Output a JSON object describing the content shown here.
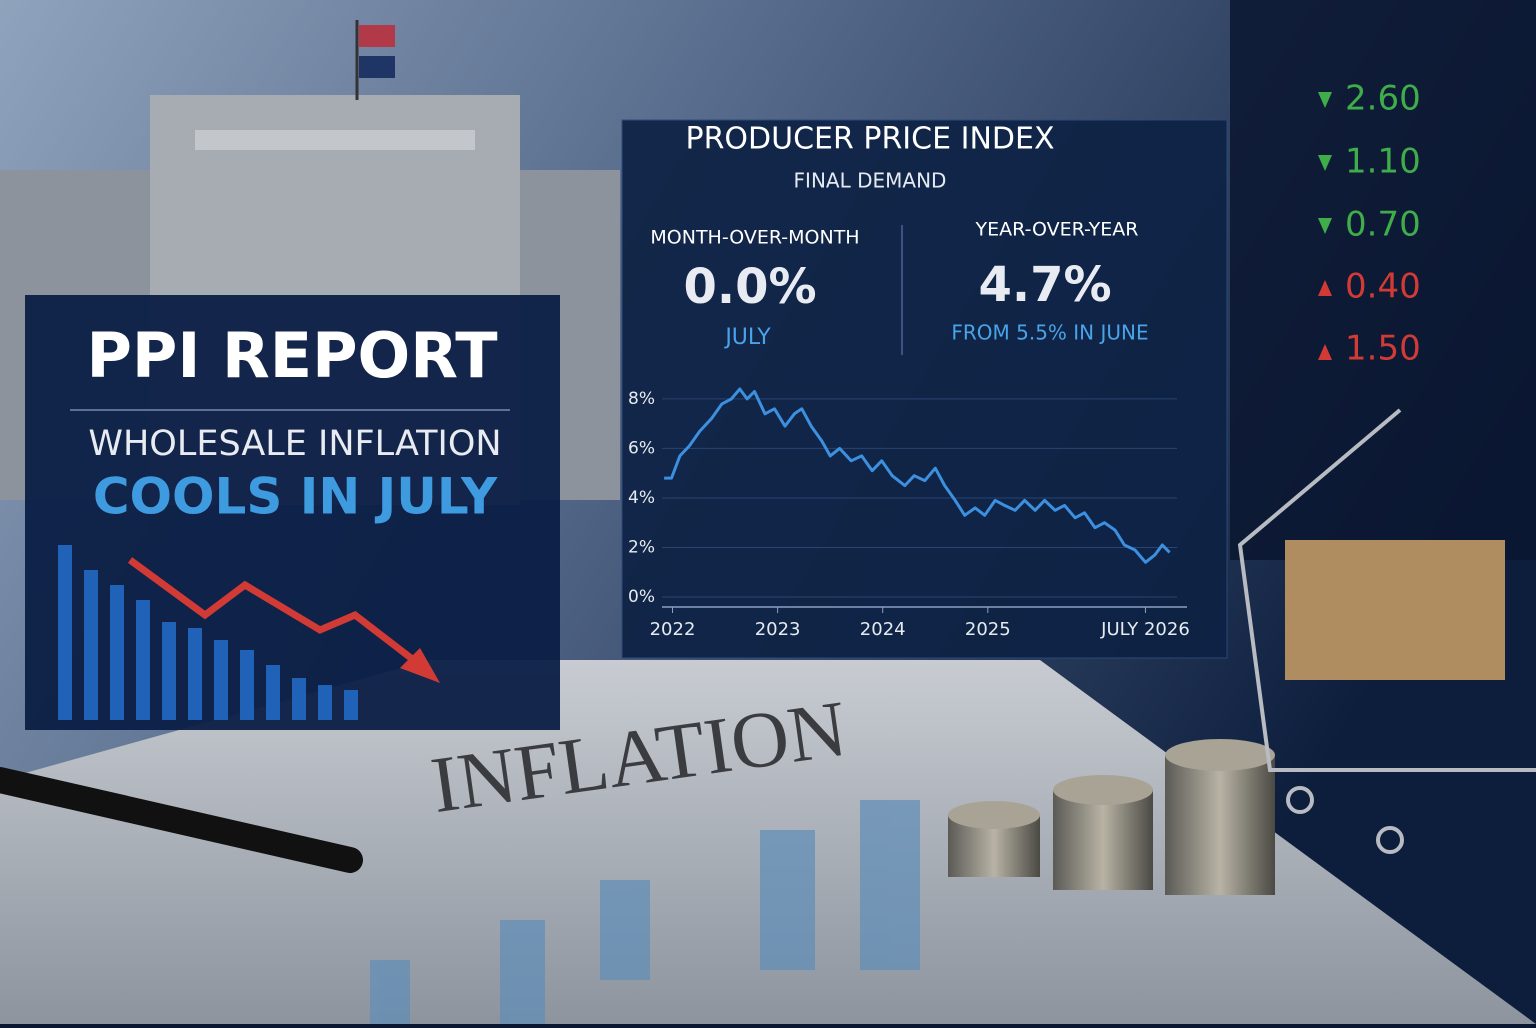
{
  "headline": {
    "title": "PPI REPORT",
    "subtitle": "WHOLESALE INFLATION",
    "highlight": "COOLS IN JULY"
  },
  "panel": {
    "title": "PRODUCER PRICE INDEX",
    "subtitle": "FINAL DEMAND",
    "mom_label": "MONTH-OVER-MONTH",
    "mom_value": "0.0%",
    "mom_note": "JULY",
    "yoy_label": "YEAR-OVER-YEAR",
    "yoy_value": "4.7%",
    "yoy_note": "FROM 5.5% IN JUNE"
  },
  "ticker": [
    "2.60",
    "1.10",
    "0.70",
    "0.40",
    "1.50"
  ],
  "newspaper": {
    "headline": "INFLATION"
  },
  "chart_data": {
    "type": "line",
    "color": "#3d8fe0",
    "grid": true,
    "x": [
      2021.92,
      2021.99,
      2022.07,
      2022.16,
      2022.26,
      2022.37,
      2022.47,
      2022.56,
      2022.64,
      2022.71,
      2022.78,
      2022.88,
      2022.97,
      2023.07,
      2023.16,
      2023.23,
      2023.32,
      2023.42,
      2023.5,
      2023.59,
      2023.7,
      2023.8,
      2023.9,
      2023.99,
      2024.09,
      2024.21,
      2024.3,
      2024.4,
      2024.5,
      2024.59,
      2024.69,
      2024.78,
      2024.88,
      2024.97,
      2025.07,
      2025.16,
      2025.26,
      2025.35,
      2025.45,
      2025.54,
      2025.64,
      2025.73,
      2025.83,
      2025.92,
      2026.02,
      2026.11,
      2026.21,
      2026.3,
      2026.4,
      2026.5,
      2026.59,
      2026.66,
      2026.73
    ],
    "values": [
      4.8,
      4.8,
      5.7,
      6.1,
      6.7,
      7.2,
      7.8,
      8.0,
      8.4,
      8.0,
      8.3,
      7.4,
      7.6,
      6.9,
      7.4,
      7.6,
      6.9,
      6.3,
      5.7,
      6.0,
      5.5,
      5.7,
      5.1,
      5.5,
      4.9,
      4.5,
      4.9,
      4.7,
      5.2,
      4.5,
      3.9,
      3.3,
      3.6,
      3.3,
      3.9,
      3.7,
      3.5,
      3.9,
      3.5,
      3.9,
      3.5,
      3.7,
      3.2,
      3.4,
      2.8,
      3.0,
      2.7,
      2.1,
      1.9,
      1.4,
      1.7,
      2.1,
      1.8
    ],
    "xlim": [
      2021.9,
      2026.8
    ],
    "ylim": [
      0,
      8.4
    ],
    "xticks": [
      2022,
      2023,
      2024,
      2025,
      {
        "value": 2026.5,
        "label": "JULY 2026"
      }
    ],
    "yticks": [
      {
        "value": 0,
        "label": "0%"
      },
      {
        "value": 2,
        "label": "2%"
      },
      {
        "value": 4,
        "label": "4%"
      },
      {
        "value": 6,
        "label": "6%"
      },
      {
        "value": 8,
        "label": "8%"
      }
    ]
  }
}
